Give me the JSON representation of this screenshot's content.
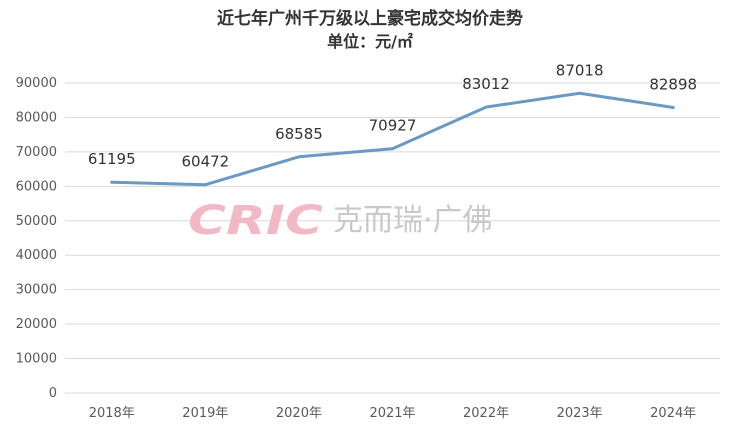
{
  "chart_data": {
    "type": "line",
    "title": "近七年广州千万级以上豪宅成交均价走势",
    "subtitle": "单位：元/㎡",
    "categories": [
      "2018年",
      "2019年",
      "2020年",
      "2021年",
      "2022年",
      "2023年",
      "2024年"
    ],
    "series": [
      {
        "values": [
          61195,
          60472,
          68585,
          70927,
          83012,
          87018,
          82898
        ],
        "color": "#6a9ac4"
      }
    ],
    "ylim": [
      0,
      90000
    ],
    "yticks": [
      0,
      10000,
      20000,
      30000,
      40000,
      50000,
      60000,
      70000,
      80000,
      90000
    ],
    "data_labels": [
      "61195",
      "60472",
      "68585",
      "70927",
      "83012",
      "87018",
      "82898"
    ],
    "grid": true,
    "legend": "none"
  },
  "watermark": {
    "logo": "CRIC",
    "text": "克而瑞·广佛",
    "logo_color": "#f2b8c3",
    "text_color": "#c9c9c9"
  }
}
